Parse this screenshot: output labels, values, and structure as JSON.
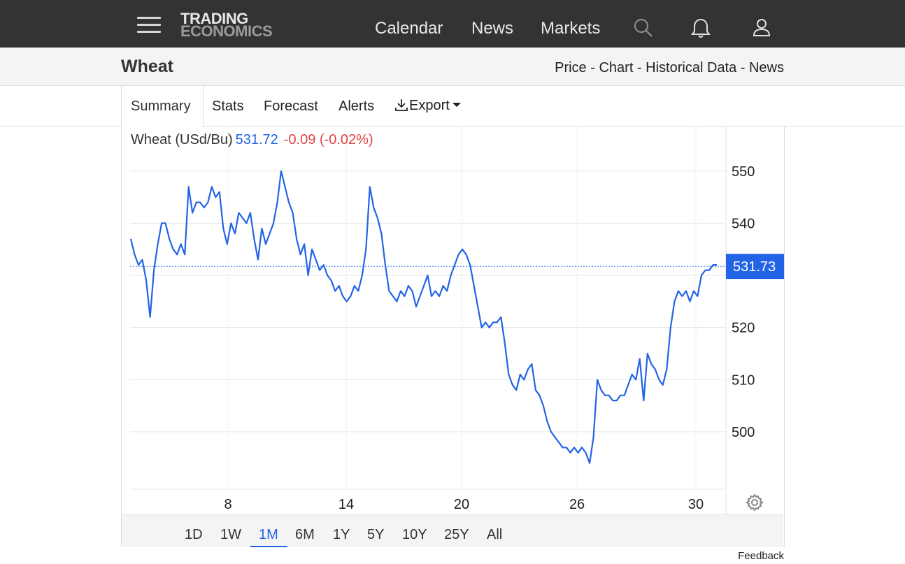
{
  "header": {
    "logo_line1": "TRADING",
    "logo_line2": "ECONOMICS",
    "nav": [
      {
        "label": "Calendar"
      },
      {
        "label": "News"
      },
      {
        "label": "Markets"
      }
    ],
    "icons": [
      "menu-icon",
      "search-icon",
      "bell-icon",
      "user-icon"
    ]
  },
  "subheader": {
    "title": "Wheat",
    "links": [
      "Price",
      "Chart",
      "Historical Data",
      "News"
    ],
    "separator": " - "
  },
  "tabs": {
    "summary": "Summary",
    "stats": "Stats",
    "forecast": "Forecast",
    "alerts": "Alerts",
    "export": "Export"
  },
  "quote": {
    "name": "Wheat (USd/Bu)",
    "price": "531.72",
    "change": "-0.09 (-0.02%)",
    "last_label": "531.73"
  },
  "colors": {
    "line": "#2364e6",
    "negative": "#e04545",
    "topbar": "#333333",
    "badge": "#2364e6"
  },
  "chart_data": {
    "type": "line",
    "series": [
      {
        "values": [
          537,
          534,
          532,
          533,
          529,
          522,
          531,
          536,
          540,
          540,
          537,
          535,
          534,
          536,
          534,
          547,
          542,
          544,
          544,
          543,
          544,
          547,
          545,
          546,
          539,
          536,
          540,
          538,
          542,
          541,
          540,
          542,
          537,
          533,
          539,
          536,
          538,
          540,
          544,
          550,
          547,
          544,
          542,
          537,
          534,
          536,
          530,
          535,
          533,
          531,
          532,
          530,
          529,
          527,
          528,
          526,
          525,
          526,
          528,
          527,
          530,
          535,
          547,
          543,
          541,
          538,
          532,
          527,
          526,
          525,
          527,
          526,
          528,
          527,
          524,
          526,
          528,
          530,
          526,
          527,
          526,
          528,
          527,
          530,
          532,
          534,
          535,
          534,
          532,
          528,
          524,
          520,
          521,
          520,
          521,
          521,
          522,
          517,
          511,
          509,
          508,
          511,
          510,
          512,
          513,
          508,
          507,
          505,
          502,
          500,
          499,
          498,
          497,
          497,
          496,
          497,
          496,
          497,
          496,
          494,
          499,
          510,
          508,
          507,
          507,
          506,
          506,
          507,
          507,
          509,
          511,
          510,
          514,
          506,
          515,
          513,
          512,
          510,
          509,
          512,
          520,
          525,
          527,
          526,
          527,
          525,
          527,
          526,
          530,
          531,
          531,
          532,
          532
        ],
        "last": 531.73
      }
    ],
    "x_ticks": [
      "8",
      "14",
      "20",
      "26",
      "30"
    ],
    "y_ticks": [
      "550",
      "540",
      "520",
      "510",
      "500"
    ],
    "ylim": [
      489,
      556
    ],
    "current_label": "531.73",
    "grid": true
  },
  "ranges": {
    "active": "1M",
    "items": [
      "1D",
      "1W",
      "1M",
      "6M",
      "1Y",
      "5Y",
      "10Y",
      "25Y",
      "All"
    ]
  },
  "feedback": "Feedback"
}
